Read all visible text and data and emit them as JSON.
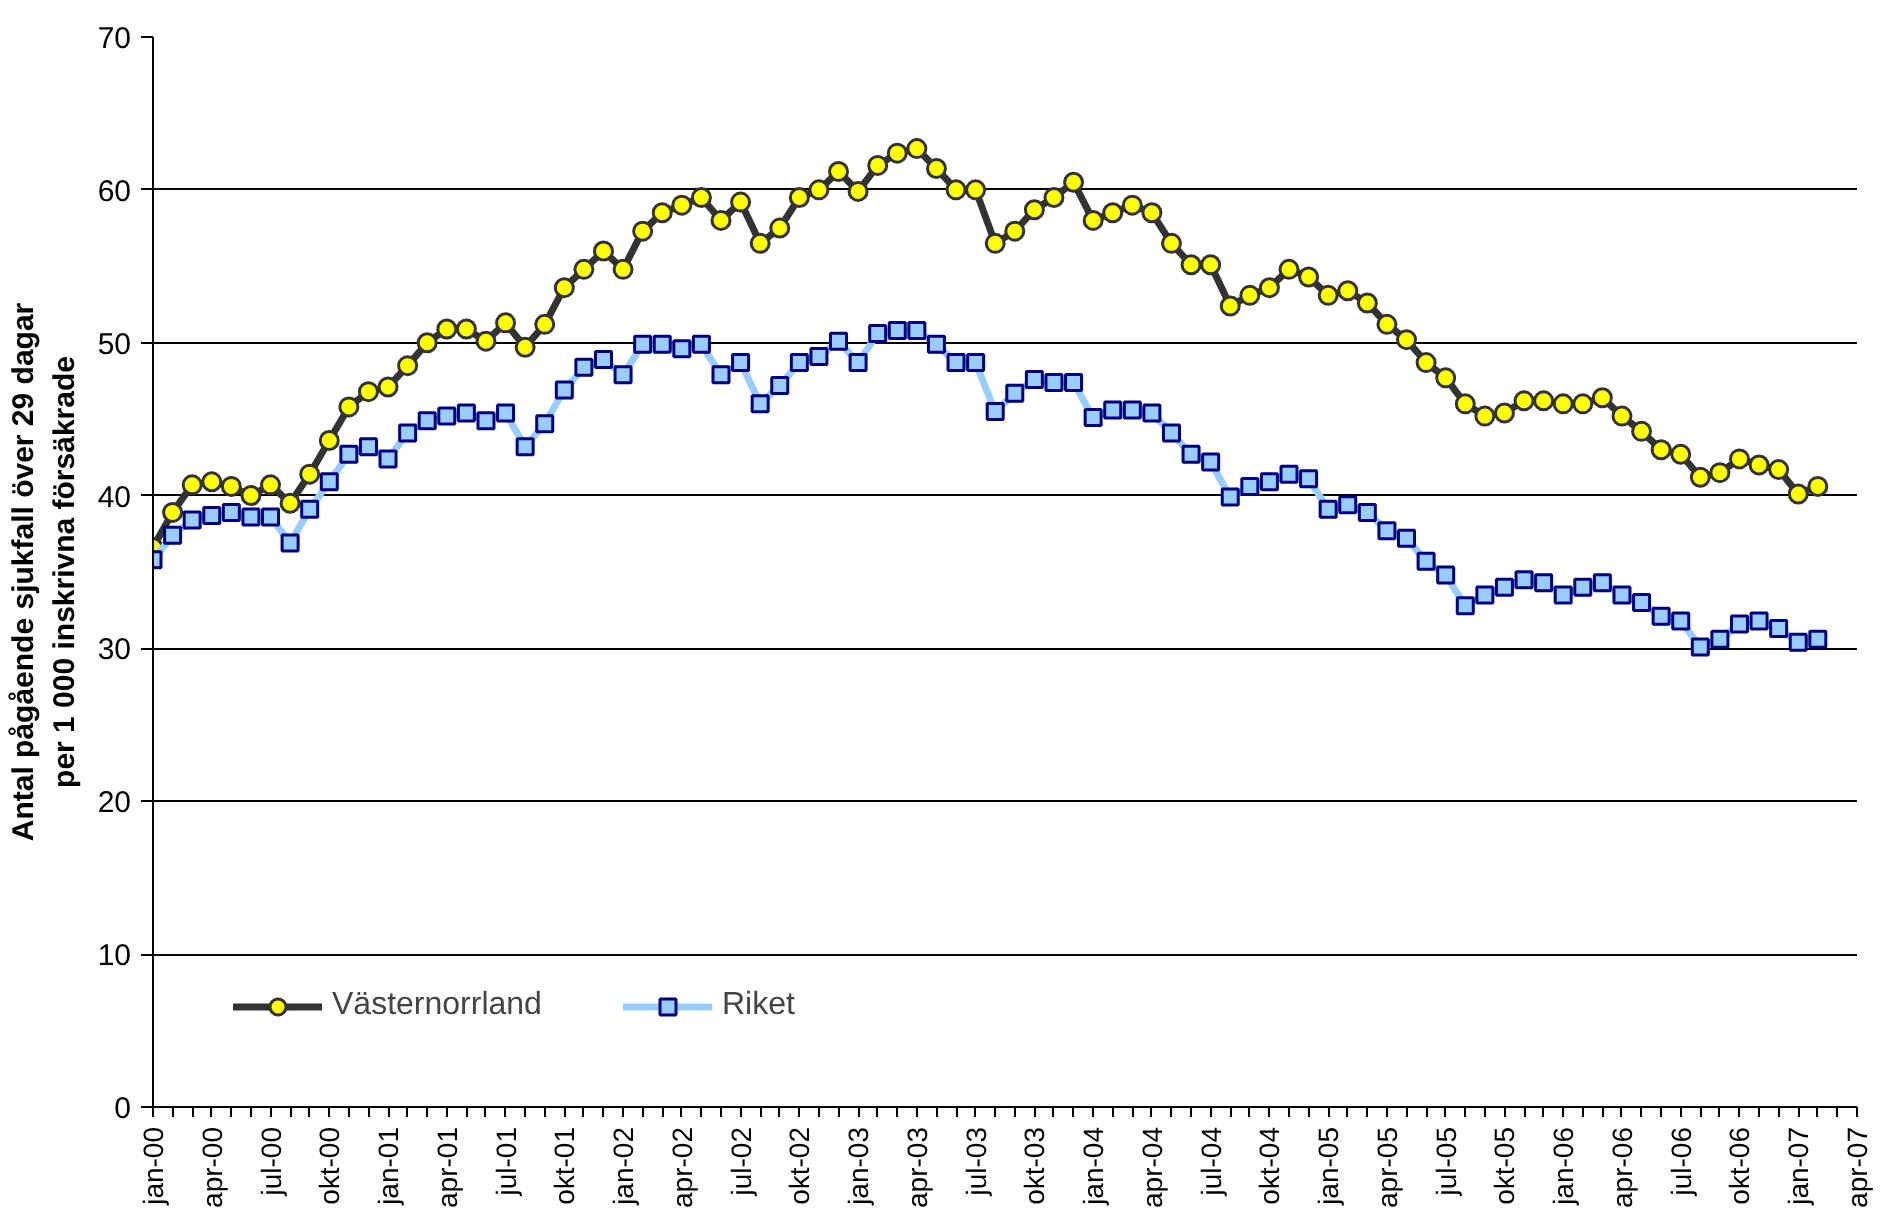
{
  "chart_data": {
    "type": "line",
    "ylabel": "Antal pågående sjukfall över 29 dagar\nper 1 000 inskrivna försäkrade",
    "categories": [
      "jan-00",
      null,
      null,
      "apr-00",
      null,
      null,
      "jul-00",
      null,
      null,
      "okt-00",
      null,
      null,
      "jan-01",
      null,
      null,
      "apr-01",
      null,
      null,
      "jul-01",
      null,
      null,
      "okt-01",
      null,
      null,
      "jan-02",
      null,
      null,
      "apr-02",
      null,
      null,
      "jul-02",
      null,
      null,
      "okt-02",
      null,
      null,
      "jan-03",
      null,
      null,
      "apr-03",
      null,
      null,
      "jul-03",
      null,
      null,
      "okt-03",
      null,
      null,
      "jan-04",
      null,
      null,
      "apr-04",
      null,
      null,
      "jul-04",
      null,
      null,
      "okt-04",
      null,
      null,
      "jan-05",
      null,
      null,
      "apr-05",
      null,
      null,
      "jul-05",
      null,
      null,
      "okt-05",
      null,
      null,
      "jan-06",
      null,
      null,
      "apr-06",
      null,
      null,
      "jul-06",
      null,
      null,
      "okt-06",
      null,
      null,
      "jan-07",
      null,
      null,
      "apr-07"
    ],
    "series": [
      {
        "name": "Västernorrland",
        "color": "#ffff00",
        "marker": "circle",
        "values": [
          36.6,
          38.9,
          40.7,
          40.9,
          40.6,
          40.0,
          40.7,
          39.5,
          41.4,
          43.6,
          45.8,
          46.8,
          47.1,
          48.5,
          50.0,
          50.9,
          50.9,
          50.1,
          51.3,
          49.7,
          51.2,
          53.6,
          54.8,
          56.0,
          54.8,
          57.3,
          58.5,
          59.0,
          59.5,
          58.0,
          59.2,
          56.5,
          57.5,
          59.5,
          60.0,
          61.2,
          59.9,
          61.6,
          62.4,
          62.7,
          61.4,
          60.0,
          60.0,
          56.5,
          57.3,
          58.7,
          59.5,
          60.5,
          58.0,
          58.5,
          59.0,
          58.5,
          56.5,
          55.1,
          55.1,
          52.4,
          53.1,
          53.6,
          54.8,
          54.3,
          53.1,
          53.4,
          52.6,
          51.2,
          50.2,
          48.7,
          47.7,
          46.0,
          45.2,
          45.4,
          46.2,
          46.2,
          46.0,
          46.0,
          46.4,
          45.2,
          44.2,
          43.0,
          42.7,
          41.2,
          41.5,
          42.4,
          42.0,
          41.7,
          40.1,
          40.6,
          null,
          null
        ]
      },
      {
        "name": "Riket",
        "color": "#99ccff",
        "marker": "square",
        "values": [
          35.8,
          37.4,
          38.4,
          38.7,
          38.9,
          38.6,
          38.6,
          36.9,
          39.1,
          40.9,
          42.7,
          43.2,
          42.4,
          44.1,
          44.9,
          45.2,
          45.4,
          44.9,
          45.4,
          43.2,
          44.7,
          46.9,
          48.4,
          48.9,
          47.9,
          49.9,
          49.9,
          49.6,
          49.9,
          47.9,
          48.7,
          46.0,
          47.2,
          48.7,
          49.1,
          50.1,
          48.7,
          50.6,
          50.8,
          50.8,
          49.9,
          48.7,
          48.7,
          45.5,
          46.7,
          47.6,
          47.4,
          47.4,
          45.1,
          45.6,
          45.6,
          45.4,
          44.1,
          42.7,
          42.2,
          39.9,
          40.6,
          40.9,
          41.4,
          41.1,
          39.1,
          39.4,
          38.9,
          37.7,
          37.2,
          35.7,
          34.8,
          32.8,
          33.5,
          34.0,
          34.5,
          34.3,
          33.5,
          34.0,
          34.3,
          33.5,
          33.0,
          32.1,
          31.8,
          30.1,
          30.6,
          31.6,
          31.8,
          31.3,
          30.4,
          30.6,
          null,
          null
        ]
      }
    ],
    "ylim": [
      0,
      70
    ],
    "yticks": [
      0,
      10,
      20,
      30,
      40,
      50,
      60,
      70
    ],
    "grid": "y",
    "legend": "bottom left"
  }
}
